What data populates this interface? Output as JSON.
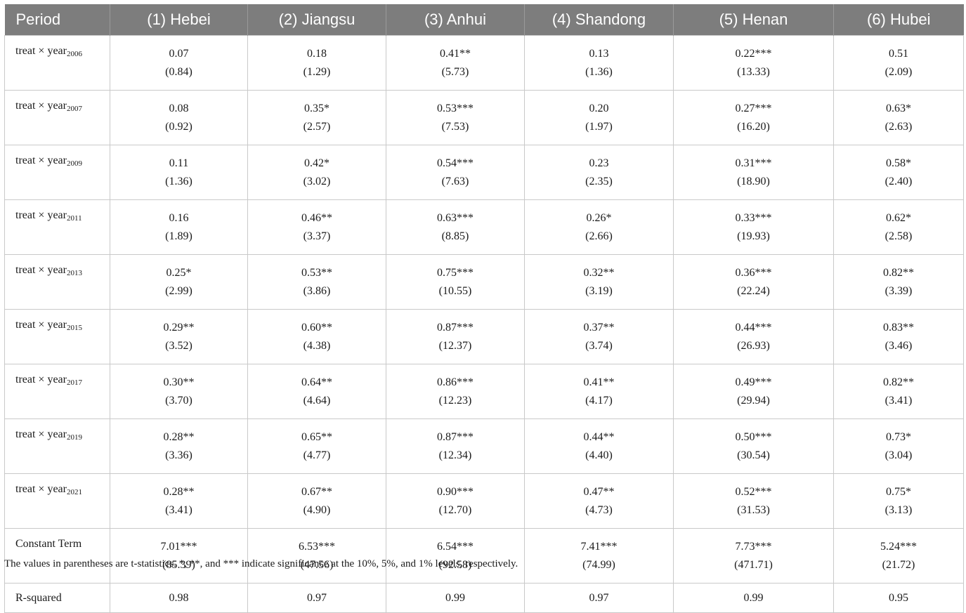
{
  "table": {
    "headers": [
      "Period",
      "(1) Hebei",
      "(2) Jiangsu",
      "(3) Anhui",
      "(4) Shandong",
      "(5) Henan",
      "(6) Hubei"
    ],
    "rows": [
      {
        "label": "treat × year",
        "sub": "2006",
        "coef": [
          "0.07",
          "0.18",
          "0.41**",
          "0.13",
          "0.22***",
          "0.51"
        ],
        "t": [
          "(0.84)",
          "(1.29)",
          "(5.73)",
          "(1.36)",
          "(13.33)",
          "(2.09)"
        ]
      },
      {
        "label": "treat × year",
        "sub": "2007",
        "coef": [
          "0.08",
          "0.35*",
          "0.53***",
          "0.20",
          "0.27***",
          "0.63*"
        ],
        "t": [
          "(0.92)",
          "(2.57)",
          "(7.53)",
          "(1.97)",
          "(16.20)",
          "(2.63)"
        ]
      },
      {
        "label": "treat × year",
        "sub": "2009",
        "coef": [
          "0.11",
          "0.42*",
          "0.54***",
          "0.23",
          "0.31***",
          "0.58*"
        ],
        "t": [
          "(1.36)",
          "(3.02)",
          "(7.63)",
          "(2.35)",
          "(18.90)",
          "(2.40)"
        ]
      },
      {
        "label": "treat × year",
        "sub": "2011",
        "coef": [
          "0.16",
          "0.46**",
          "0.63***",
          "0.26*",
          "0.33***",
          "0.62*"
        ],
        "t": [
          "(1.89)",
          "(3.37)",
          "(8.85)",
          "(2.66)",
          "(19.93)",
          "(2.58)"
        ]
      },
      {
        "label": "treat × year",
        "sub": "2013",
        "coef": [
          "0.25*",
          "0.53**",
          "0.75***",
          "0.32**",
          "0.36***",
          "0.82**"
        ],
        "t": [
          "(2.99)",
          "(3.86)",
          "(10.55)",
          "(3.19)",
          "(22.24)",
          "(3.39)"
        ]
      },
      {
        "label": "treat × year",
        "sub": "2015",
        "coef": [
          "0.29**",
          "0.60**",
          "0.87***",
          "0.37**",
          "0.44***",
          "0.83**"
        ],
        "t": [
          "(3.52)",
          "(4.38)",
          "(12.37)",
          "(3.74)",
          "(26.93)",
          "(3.46)"
        ]
      },
      {
        "label": "treat × year",
        "sub": "2017",
        "coef": [
          "0.30**",
          "0.64**",
          "0.86***",
          "0.41**",
          "0.49***",
          "0.82**"
        ],
        "t": [
          "(3.70)",
          "(4.64)",
          "(12.23)",
          "(4.17)",
          "(29.94)",
          "(3.41)"
        ]
      },
      {
        "label": "treat × year",
        "sub": "2019",
        "coef": [
          "0.28**",
          "0.65**",
          "0.87***",
          "0.44**",
          "0.50***",
          "0.73*"
        ],
        "t": [
          "(3.36)",
          "(4.77)",
          "(12.34)",
          "(4.40)",
          "(30.54)",
          "(3.04)"
        ]
      },
      {
        "label": "treat × year",
        "sub": "2021",
        "coef": [
          "0.28**",
          "0.67**",
          "0.90***",
          "0.47**",
          "0.52***",
          "0.75*"
        ],
        "t": [
          "(3.41)",
          "(4.90)",
          "(12.70)",
          "(4.73)",
          "(31.53)",
          "(3.13)"
        ]
      },
      {
        "label": "Constant Term",
        "sub": "",
        "coef": [
          "7.01***",
          "6.53***",
          "6.54***",
          "7.41***",
          "7.73***",
          "5.24***"
        ],
        "t": [
          "(85.39)",
          "(47.56)",
          "(92.58)",
          "(74.99)",
          "(471.71)",
          "(21.72)"
        ]
      }
    ],
    "rsquared": {
      "label": "R-squared",
      "values": [
        "0.98",
        "0.97",
        "0.99",
        "0.97",
        "0.99",
        "0.95"
      ]
    }
  },
  "note": "The values in parentheses are t-statistics. *, **, and *** indicate significance at the 10%, 5%, and 1% levels, respectively.",
  "colors": {
    "header_bg": "#7d7d7d",
    "header_text": "#ffffff",
    "grid": "#c9c9c9"
  }
}
